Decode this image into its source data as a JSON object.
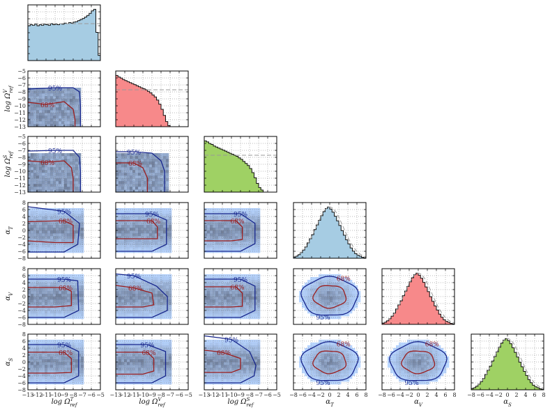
{
  "figure": {
    "type": "corner",
    "parameters": [
      "log Ω_ref^T",
      "log Ω_ref^V",
      "log Ω_ref^S",
      "α_T",
      "α_V",
      "α_S"
    ]
  },
  "axes": {
    "x_labels": [
      {
        "base": "log Ω",
        "sub": "ref",
        "sup": "T"
      },
      {
        "base": "log Ω",
        "sub": "ref",
        "sup": "V"
      },
      {
        "base": "log Ω",
        "sub": "ref",
        "sup": "S"
      },
      {
        "base": "α",
        "sub": "T",
        "sup": ""
      },
      {
        "base": "α",
        "sub": "V",
        "sup": ""
      },
      {
        "base": "α",
        "sub": "S",
        "sup": ""
      }
    ],
    "y_labels": [
      {
        "base": "",
        "sub": "",
        "sup": ""
      },
      {
        "base": "log Ω",
        "sub": "ref",
        "sup": "V"
      },
      {
        "base": "log Ω",
        "sub": "ref",
        "sup": "S"
      },
      {
        "base": "α",
        "sub": "T",
        "sup": ""
      },
      {
        "base": "α",
        "sub": "V",
        "sup": ""
      },
      {
        "base": "α",
        "sub": "S",
        "sup": ""
      }
    ],
    "log_ticks": [
      "−13",
      "−12",
      "−11",
      "−10",
      "−9",
      "−8",
      "−7",
      "−6",
      "−5"
    ],
    "log_ytick_labels": [
      "−5",
      "−6",
      "−7",
      "−8",
      "−9",
      "−10",
      "−11",
      "−12",
      "−13"
    ],
    "alpha_ticks": [
      "−8",
      "−6",
      "−4",
      "−2",
      "0",
      "2",
      "4",
      "6",
      "8"
    ],
    "alpha_ytick_labels": [
      "8",
      "6",
      "4",
      "2",
      "0",
      "−2",
      "−4",
      "−6",
      "−8"
    ]
  },
  "contour_labels": {
    "inner": "68%",
    "outer": "95%"
  },
  "colors": {
    "T": "#a6cce3",
    "V": "#f7898a",
    "S": "#9fd164",
    "contour68": "#9b1c1c",
    "contour95": "#16258c",
    "hist_edge": "#111111",
    "prior": "#999999"
  },
  "chart_data": {
    "type": "corner",
    "ranges": {
      "log": [
        -13,
        -5
      ],
      "alpha": [
        -8,
        8
      ]
    },
    "histograms": [
      {
        "parameter": "log Ω_ref^T",
        "bin_edges_start": -13,
        "bin_width": 0.25,
        "counts": [
          0.68,
          0.7,
          0.69,
          0.71,
          0.68,
          0.7,
          0.69,
          0.71,
          0.7,
          0.69,
          0.72,
          0.7,
          0.71,
          0.7,
          0.72,
          0.71,
          0.73,
          0.72,
          0.74,
          0.73,
          0.75,
          0.76,
          0.78,
          0.8,
          0.82,
          0.85,
          0.88,
          0.92,
          0.97,
          1.0,
          0.55,
          0.1
        ],
        "prior": "flat"
      },
      {
        "parameter": "log Ω_ref^V",
        "bin_edges_start": -13,
        "bin_width": 0.25,
        "counts": [
          1.0,
          0.97,
          0.95,
          0.92,
          0.9,
          0.88,
          0.86,
          0.84,
          0.82,
          0.8,
          0.78,
          0.76,
          0.74,
          0.72,
          0.69,
          0.66,
          0.62,
          0.58,
          0.52,
          0.44,
          0.34,
          0.22,
          0.1,
          0.02,
          0,
          0,
          0,
          0,
          0,
          0,
          0,
          0
        ],
        "prior": "flat"
      },
      {
        "parameter": "log Ω_ref^S",
        "bin_edges_start": -13,
        "bin_width": 0.25,
        "counts": [
          1.0,
          0.98,
          0.95,
          0.93,
          0.9,
          0.88,
          0.86,
          0.84,
          0.82,
          0.8,
          0.78,
          0.76,
          0.74,
          0.72,
          0.7,
          0.67,
          0.64,
          0.6,
          0.56,
          0.52,
          0.46,
          0.38,
          0.28,
          0.17,
          0.09,
          0.04,
          0,
          0,
          0,
          0,
          0,
          0
        ],
        "prior": "flat"
      },
      {
        "parameter": "α_T",
        "bin_edges_start": -8,
        "bin_width": 0.5,
        "counts": [
          0.02,
          0.04,
          0.07,
          0.11,
          0.16,
          0.22,
          0.3,
          0.38,
          0.46,
          0.56,
          0.65,
          0.74,
          0.83,
          0.91,
          0.97,
          1.0,
          0.96,
          0.9,
          0.82,
          0.73,
          0.64,
          0.54,
          0.45,
          0.36,
          0.28,
          0.2,
          0.14,
          0.09,
          0.06,
          0.04,
          0.02,
          0.01
        ],
        "prior": "gaussian"
      },
      {
        "parameter": "α_V",
        "bin_edges_start": -8,
        "bin_width": 0.5,
        "counts": [
          0.02,
          0.04,
          0.07,
          0.11,
          0.16,
          0.22,
          0.3,
          0.38,
          0.46,
          0.56,
          0.65,
          0.74,
          0.83,
          0.91,
          0.97,
          1.0,
          0.96,
          0.9,
          0.82,
          0.73,
          0.64,
          0.54,
          0.45,
          0.36,
          0.28,
          0.2,
          0.14,
          0.09,
          0.06,
          0.04,
          0.02,
          0.01
        ],
        "prior": "gaussian"
      },
      {
        "parameter": "α_S",
        "bin_edges_start": -8,
        "bin_width": 0.5,
        "counts": [
          0.02,
          0.04,
          0.07,
          0.11,
          0.16,
          0.22,
          0.3,
          0.38,
          0.46,
          0.56,
          0.65,
          0.74,
          0.83,
          0.91,
          0.97,
          1.0,
          0.96,
          0.9,
          0.82,
          0.73,
          0.64,
          0.54,
          0.45,
          0.36,
          0.28,
          0.2,
          0.14,
          0.09,
          0.06,
          0.04,
          0.02,
          0.01
        ],
        "prior": "gaussian"
      }
    ],
    "contours_2d": [
      {
        "x": "log Ω_ref^T",
        "y": "log Ω_ref^V",
        "c95": [
          [
            -13,
            -7.6
          ],
          [
            -10,
            -7.4
          ],
          [
            -8,
            -7.4
          ],
          [
            -7.3,
            -8
          ],
          [
            -7.2,
            -10
          ],
          [
            -7.2,
            -13
          ]
        ],
        "c68": [
          [
            -13,
            -9.5
          ],
          [
            -11,
            -9.8
          ],
          [
            -9,
            -9.4
          ],
          [
            -8,
            -10.5
          ],
          [
            -7.8,
            -12
          ],
          [
            -7.8,
            -13
          ]
        ]
      },
      {
        "x": "log Ω_ref^T",
        "y": "log Ω_ref^S",
        "c95": [
          [
            -13,
            -7.1
          ],
          [
            -10,
            -7.0
          ],
          [
            -8,
            -7.0
          ],
          [
            -7.3,
            -8
          ],
          [
            -7.2,
            -10
          ],
          [
            -7.2,
            -13
          ]
        ],
        "c68": [
          [
            -13,
            -8.5
          ],
          [
            -11,
            -8.7
          ],
          [
            -9,
            -8.5
          ],
          [
            -8.2,
            -9.5
          ],
          [
            -8,
            -11
          ],
          [
            -8,
            -13
          ]
        ]
      },
      {
        "x": "log Ω_ref^V",
        "y": "log Ω_ref^S",
        "c95": [
          [
            -13,
            -7.2
          ],
          [
            -11,
            -7.2
          ],
          [
            -9,
            -7.4
          ],
          [
            -8,
            -8.5
          ],
          [
            -7.6,
            -10
          ],
          [
            -7.6,
            -13
          ]
        ],
        "c68": [
          [
            -13,
            -8.8
          ],
          [
            -11,
            -8.8
          ],
          [
            -10,
            -9.5
          ],
          [
            -9.5,
            -11
          ],
          [
            -9.5,
            -13
          ]
        ]
      },
      {
        "x": "log Ω_ref^T",
        "y": "α_T",
        "c95": [
          [
            -13,
            6.8
          ],
          [
            -9,
            5.5
          ],
          [
            -7.3,
            2
          ],
          [
            -7.5,
            -4
          ],
          [
            -9,
            -6.2
          ],
          [
            -13,
            -6.2
          ]
        ],
        "c68": [
          [
            -13,
            2.5
          ],
          [
            -9,
            2.8
          ],
          [
            -8,
            1.5
          ],
          [
            -8,
            -3.5
          ],
          [
            -10,
            -3.5
          ],
          [
            -13,
            -3
          ]
        ]
      },
      {
        "x": "log Ω_ref^V",
        "y": "α_T",
        "c95": [
          [
            -13,
            4.8
          ],
          [
            -9,
            4.8
          ],
          [
            -7.4,
            3
          ],
          [
            -7.4,
            -4
          ],
          [
            -9,
            -6
          ],
          [
            -13,
            -6
          ]
        ],
        "c68": [
          [
            -13,
            2.8
          ],
          [
            -9,
            2.8
          ],
          [
            -8.4,
            1
          ],
          [
            -8.4,
            -2.4
          ],
          [
            -10,
            -2.4
          ],
          [
            -13,
            -2.4
          ]
        ]
      },
      {
        "x": "log Ω_ref^S",
        "y": "α_T",
        "c95": [
          [
            -13,
            4.8
          ],
          [
            -9,
            4.8
          ],
          [
            -7.4,
            2
          ],
          [
            -7.4,
            -3.8
          ],
          [
            -9,
            -6
          ],
          [
            -13,
            -6
          ]
        ],
        "c68": [
          [
            -13,
            2.8
          ],
          [
            -9.5,
            2.8
          ],
          [
            -8.8,
            1
          ],
          [
            -8.8,
            -2.6
          ],
          [
            -10,
            -3
          ],
          [
            -13,
            -3
          ]
        ]
      },
      {
        "x": "log Ω_ref^T",
        "y": "α_V",
        "c95": [
          [
            -13,
            5
          ],
          [
            -9,
            5
          ],
          [
            -7.5,
            4.5
          ],
          [
            -7.4,
            -4
          ],
          [
            -9,
            -6
          ],
          [
            -13,
            -6
          ]
        ],
        "c68": [
          [
            -13,
            2.6
          ],
          [
            -9,
            2.6
          ],
          [
            -8.2,
            1.5
          ],
          [
            -8.2,
            -2.6
          ],
          [
            -10,
            -3
          ],
          [
            -13,
            -3
          ]
        ]
      },
      {
        "x": "log Ω_ref^V",
        "y": "α_V",
        "c95": [
          [
            -13,
            6.5
          ],
          [
            -11,
            6
          ],
          [
            -8.5,
            3
          ],
          [
            -7.3,
            0
          ],
          [
            -7.3,
            -4
          ],
          [
            -9,
            -6
          ],
          [
            -13,
            -6
          ]
        ],
        "c68": [
          [
            -13,
            3.2
          ],
          [
            -11,
            2.5
          ],
          [
            -9,
            1
          ],
          [
            -8.8,
            -2.4
          ],
          [
            -10,
            -3
          ],
          [
            -13,
            -3
          ]
        ]
      },
      {
        "x": "log Ω_ref^S",
        "y": "α_V",
        "c95": [
          [
            -13,
            5
          ],
          [
            -9,
            5
          ],
          [
            -7.4,
            3
          ],
          [
            -7.4,
            -4
          ],
          [
            -9,
            -6
          ],
          [
            -13,
            -6
          ]
        ],
        "c68": [
          [
            -13,
            2.8
          ],
          [
            -9.5,
            2.8
          ],
          [
            -8.8,
            1
          ],
          [
            -8.8,
            -2.8
          ],
          [
            -10,
            -3
          ],
          [
            -13,
            -3
          ]
        ]
      },
      {
        "x": "α_T",
        "y": "α_V",
        "c95": "circle",
        "c68": "circle"
      },
      {
        "x": "log Ω_ref^T",
        "y": "α_S",
        "c95": [
          [
            -13,
            5
          ],
          [
            -9,
            5
          ],
          [
            -7.4,
            3
          ],
          [
            -7.4,
            -4
          ],
          [
            -9,
            -6
          ],
          [
            -13,
            -6
          ]
        ],
        "c68": [
          [
            -13,
            2.8
          ],
          [
            -9,
            2.8
          ],
          [
            -8.2,
            1
          ],
          [
            -8.2,
            -3
          ],
          [
            -10,
            -3.2
          ],
          [
            -13,
            -3.2
          ]
        ]
      },
      {
        "x": "log Ω_ref^V",
        "y": "α_S",
        "c95": [
          [
            -13,
            5
          ],
          [
            -9.5,
            5
          ],
          [
            -7.5,
            3
          ],
          [
            -7.5,
            -4
          ],
          [
            -9,
            -6
          ],
          [
            -13,
            -6
          ]
        ],
        "c68": [
          [
            -13,
            2.8
          ],
          [
            -9.5,
            2.8
          ],
          [
            -8.8,
            1
          ],
          [
            -8.8,
            -2.6
          ],
          [
            -10,
            -3.5
          ],
          [
            -13,
            -3.5
          ]
        ]
      },
      {
        "x": "log Ω_ref^S",
        "y": "α_S",
        "c95": [
          [
            -13,
            7.5
          ],
          [
            -10,
            6.5
          ],
          [
            -8,
            3
          ],
          [
            -7.3,
            -1
          ],
          [
            -7.5,
            -4
          ],
          [
            -9,
            -6
          ],
          [
            -13,
            -6
          ]
        ],
        "c68": [
          [
            -13,
            3.4
          ],
          [
            -11,
            2.8
          ],
          [
            -9,
            1
          ],
          [
            -9,
            -2
          ],
          [
            -10,
            -3
          ],
          [
            -13,
            -3
          ]
        ]
      },
      {
        "x": "α_T",
        "y": "α_S",
        "c95": "circle",
        "c68": "circle"
      },
      {
        "x": "α_V",
        "y": "α_S",
        "c95": "circle",
        "c68": "circle"
      }
    ],
    "grid": true
  }
}
